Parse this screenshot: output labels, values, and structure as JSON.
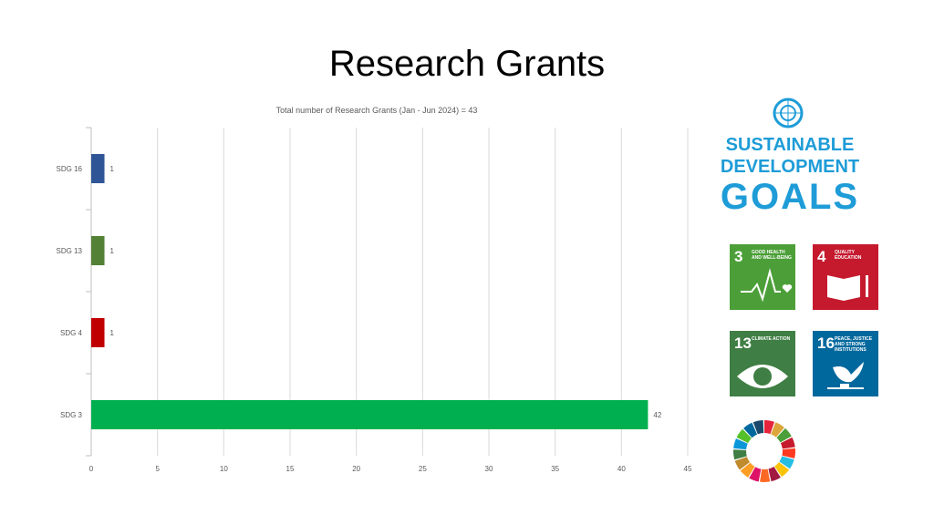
{
  "title": "Research Grants",
  "chart_data": {
    "type": "bar",
    "orientation": "horizontal",
    "title": "Total number of Research Grants (Jan - Jun 2024) = 43",
    "categories": [
      "SDG 16",
      "SDG 13",
      "SDG 4",
      "SDG 3"
    ],
    "values": [
      1,
      1,
      1,
      42
    ],
    "colors": [
      "#2f5597",
      "#538135",
      "#c00000",
      "#00b050"
    ],
    "xlim": [
      0,
      45
    ],
    "xticks": [
      0,
      5,
      10,
      15,
      20,
      25,
      30,
      35,
      40,
      45
    ],
    "grid": true,
    "data_labels": true
  },
  "logo": {
    "line1": "SUSTAINABLE",
    "line2": "DEVELOPMENT",
    "line3": "GOALS"
  },
  "tiles": [
    {
      "num": "3",
      "label": "GOOD HEALTH AND WELL-BEING",
      "color": "#4c9f38",
      "icon": "heartbeat-icon"
    },
    {
      "num": "4",
      "label": "QUALITY EDUCATION",
      "color": "#c5192d",
      "icon": "book-icon"
    },
    {
      "num": "13",
      "label": "CLIMATE ACTION",
      "color": "#3f7e44",
      "icon": "eye-globe-icon"
    },
    {
      "num": "16",
      "label": "PEACE, JUSTICE AND STRONG INSTITUTIONS",
      "color": "#00689d",
      "icon": "dove-icon"
    }
  ],
  "wheel_colors": [
    "#e5243b",
    "#dda63a",
    "#4c9f38",
    "#c5192d",
    "#ff3a21",
    "#26bde2",
    "#fcc30b",
    "#a21942",
    "#fd6925",
    "#dd1367",
    "#fd9d24",
    "#bf8b2e",
    "#3f7e44",
    "#0a97d9",
    "#56c02b",
    "#00689d",
    "#19486a"
  ]
}
